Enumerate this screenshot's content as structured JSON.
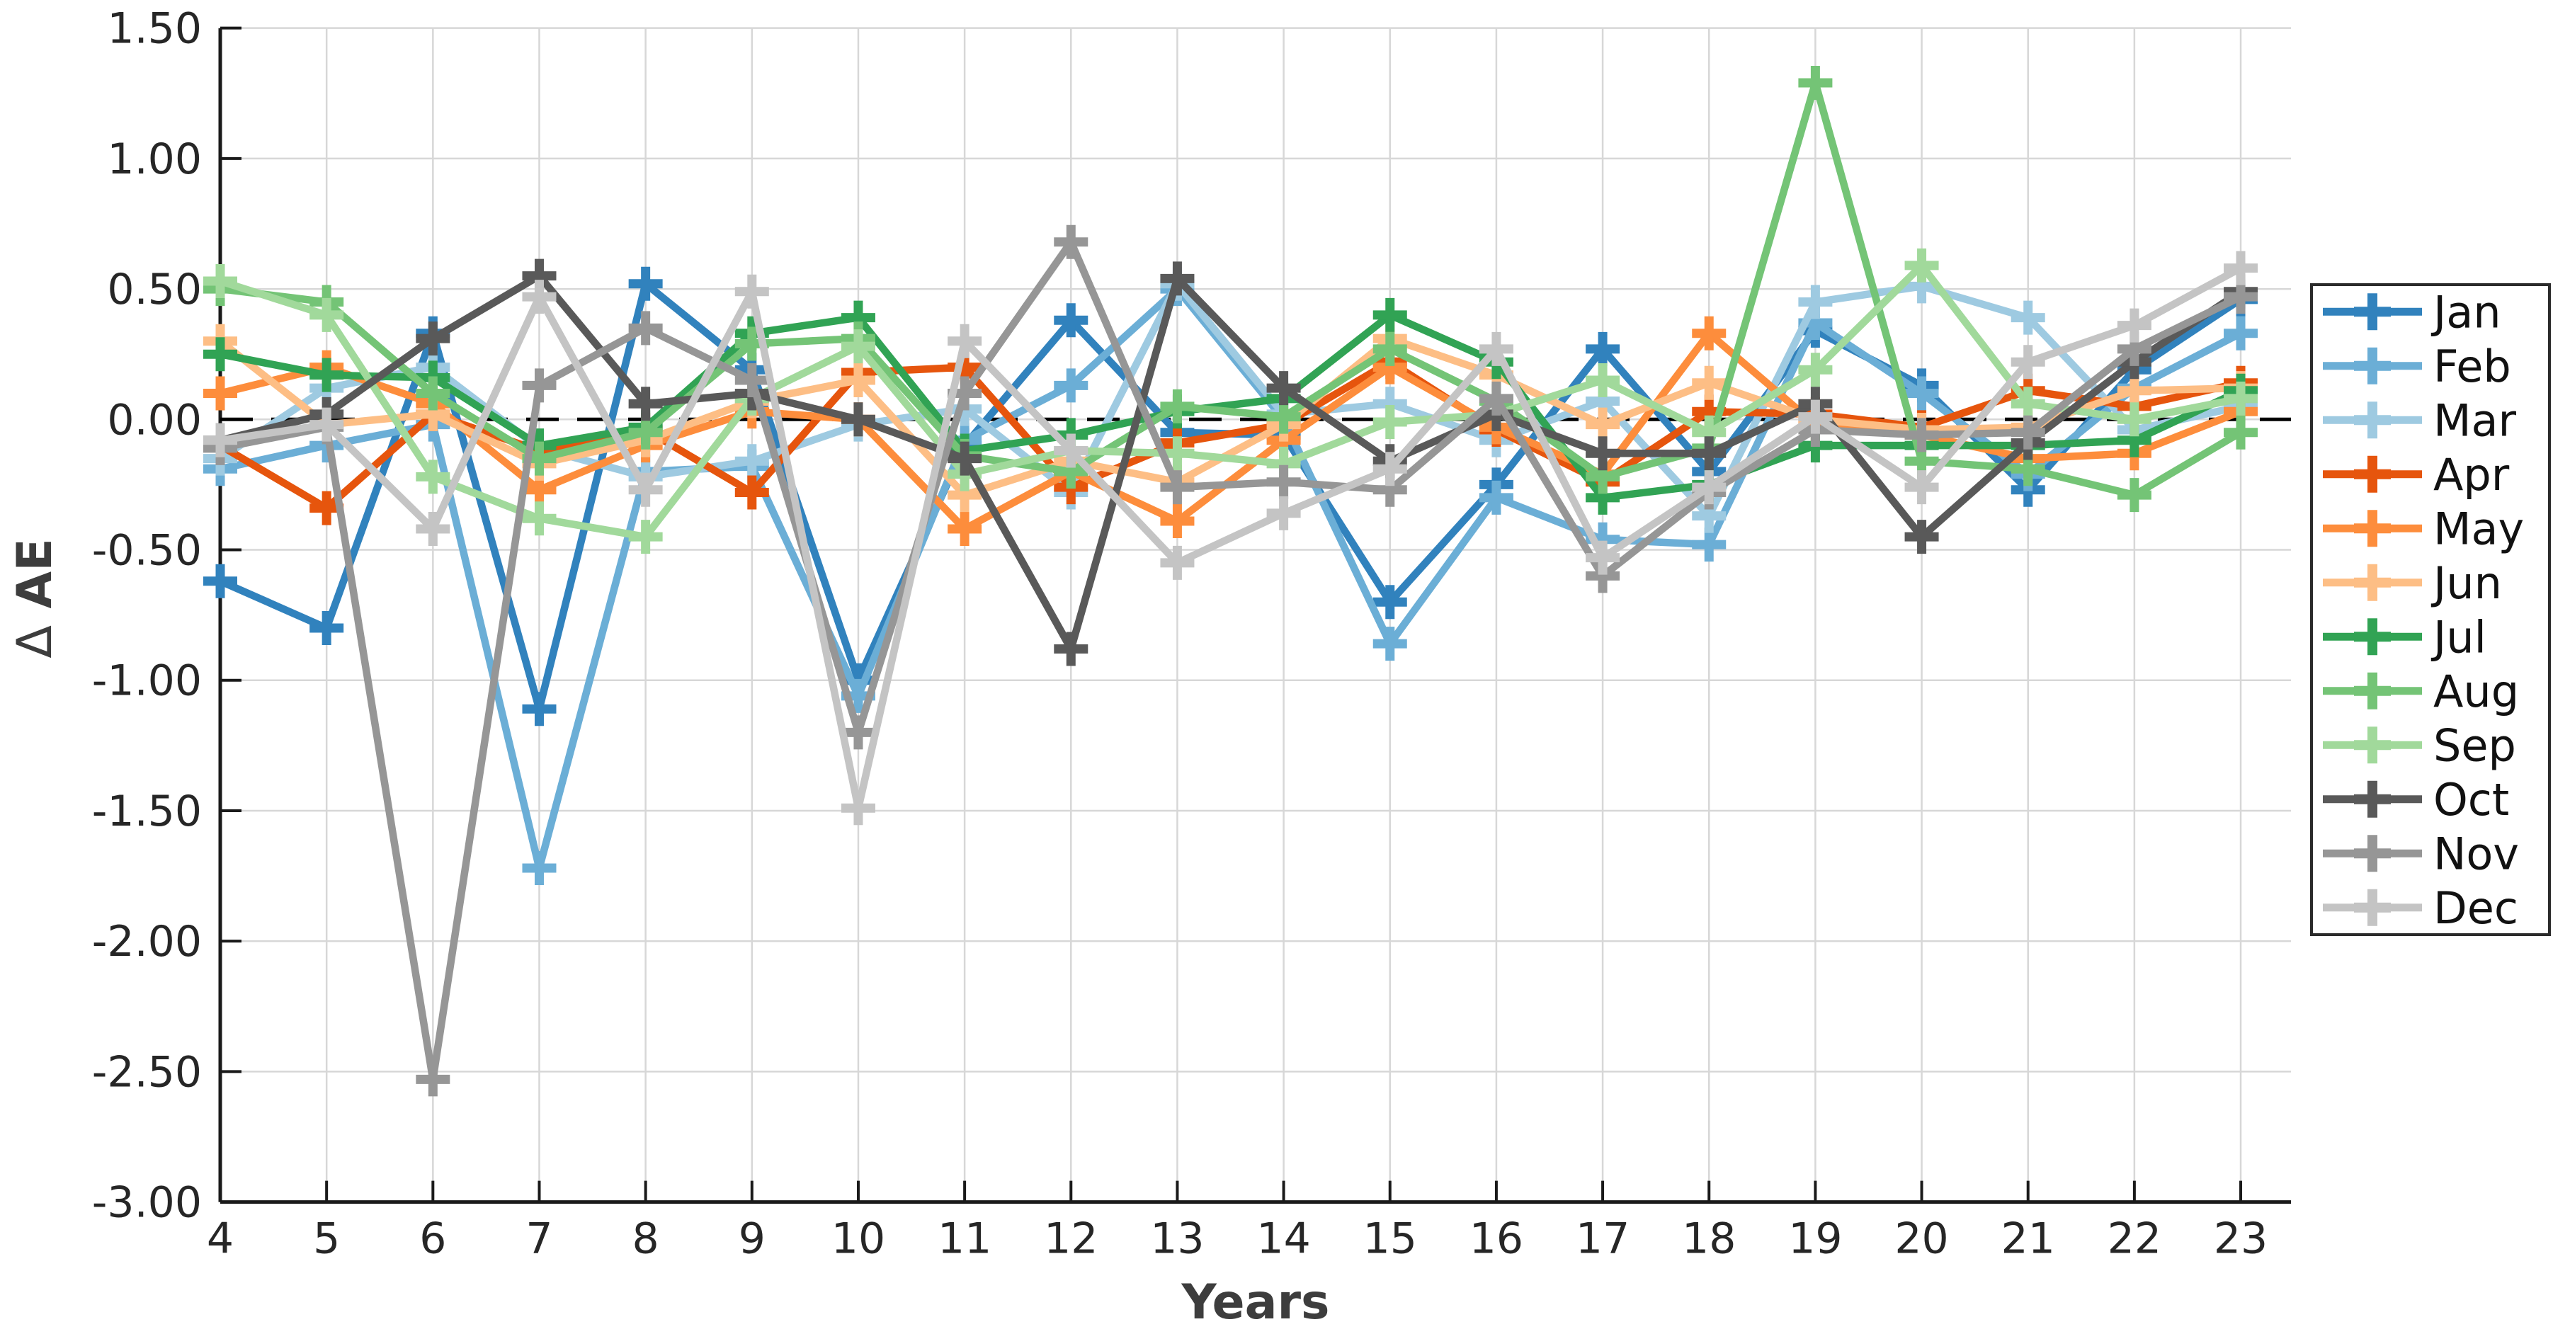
{
  "chart_data": {
    "type": "line",
    "title": "",
    "xlabel": "Years",
    "ylabel_symbol": "Δ",
    "ylabel_text": "AE",
    "x": [
      4,
      5,
      6,
      7,
      8,
      9,
      10,
      11,
      12,
      13,
      14,
      15,
      16,
      17,
      18,
      19,
      20,
      21,
      22,
      23
    ],
    "xtick_labels": [
      "4",
      "5",
      "6",
      "7",
      "8",
      "9",
      "10",
      "11",
      "12",
      "13",
      "14",
      "15",
      "16",
      "17",
      "18",
      "19",
      "20",
      "21",
      "22",
      "23"
    ],
    "ylim": [
      -3.0,
      1.5
    ],
    "yticks": [
      1.5,
      1.0,
      0.5,
      0.0,
      -0.5,
      -1.0,
      -1.5,
      -2.0,
      -2.5,
      -3.0
    ],
    "ytick_labels": [
      "1.50",
      "1.00",
      "0.50",
      "0.00",
      "-0.50",
      "-1.00",
      "-1.50",
      "-2.00",
      "-2.50",
      "-3.00"
    ],
    "grid": true,
    "zero_line": true,
    "zero_line_color": "#000000",
    "grid_color": "#d7d7d7",
    "axis_color": "#1a1a1a",
    "legend_position": "right-outside",
    "marker": "plus",
    "series": [
      {
        "name": "Jan",
        "color": "#3182bd",
        "values": [
          -0.62,
          -0.8,
          0.33,
          -1.11,
          0.52,
          0.19,
          -1.0,
          -0.1,
          0.38,
          -0.05,
          -0.06,
          -0.7,
          -0.25,
          0.27,
          -0.2,
          0.34,
          0.13,
          -0.27,
          0.19,
          0.46
        ]
      },
      {
        "name": "Feb",
        "color": "#6baed6",
        "values": [
          -0.19,
          -0.1,
          -0.02,
          -1.72,
          -0.2,
          -0.18,
          -1.06,
          -0.08,
          0.13,
          0.5,
          0.0,
          -0.86,
          -0.3,
          -0.46,
          -0.48,
          0.37,
          0.1,
          -0.21,
          0.12,
          0.33
        ]
      },
      {
        "name": "Mar",
        "color": "#9ecae1",
        "values": [
          -0.15,
          0.12,
          0.2,
          -0.11,
          -0.22,
          -0.16,
          -0.02,
          0.04,
          -0.28,
          0.52,
          0.02,
          0.06,
          -0.08,
          0.07,
          -0.37,
          0.45,
          0.51,
          0.39,
          -0.04,
          0.05
        ]
      },
      {
        "name": "Apr",
        "color": "#e6550d",
        "values": [
          -0.1,
          -0.34,
          0.02,
          -0.12,
          -0.04,
          -0.28,
          0.18,
          0.2,
          -0.26,
          -0.09,
          -0.02,
          0.22,
          -0.04,
          -0.24,
          0.03,
          0.02,
          -0.03,
          0.11,
          0.05,
          0.14
        ]
      },
      {
        "name": "May",
        "color": "#fd8d3c",
        "values": [
          0.1,
          0.2,
          0.06,
          -0.27,
          -0.1,
          0.03,
          0.0,
          -0.42,
          -0.2,
          -0.39,
          -0.08,
          0.2,
          -0.03,
          -0.21,
          0.33,
          -0.02,
          -0.06,
          -0.15,
          -0.13,
          0.03
        ]
      },
      {
        "name": "Jun",
        "color": "#fdbe85",
        "values": [
          0.3,
          -0.02,
          0.02,
          -0.17,
          -0.08,
          0.07,
          0.15,
          -0.29,
          -0.16,
          -0.24,
          -0.02,
          0.31,
          0.17,
          -0.02,
          0.14,
          0.0,
          -0.04,
          -0.03,
          0.11,
          0.12
        ]
      },
      {
        "name": "Jul",
        "color": "#31a354",
        "values": [
          0.25,
          0.17,
          0.16,
          -0.1,
          -0.03,
          0.33,
          0.39,
          -0.12,
          -0.06,
          0.03,
          0.08,
          0.4,
          0.22,
          -0.3,
          -0.25,
          -0.1,
          -0.1,
          -0.1,
          -0.08,
          0.11
        ]
      },
      {
        "name": "Aug",
        "color": "#74c476",
        "values": [
          0.5,
          0.45,
          0.1,
          -0.15,
          -0.05,
          0.29,
          0.31,
          -0.14,
          -0.2,
          0.05,
          0.01,
          0.27,
          0.07,
          -0.22,
          -0.11,
          1.29,
          -0.16,
          -0.19,
          -0.29,
          -0.05
        ]
      },
      {
        "name": "Sep",
        "color": "#a1d99b",
        "values": [
          0.53,
          0.4,
          -0.22,
          -0.38,
          -0.45,
          0.08,
          0.28,
          -0.21,
          -0.12,
          -0.13,
          -0.17,
          -0.01,
          0.02,
          0.15,
          -0.05,
          0.19,
          0.59,
          0.06,
          0.0,
          0.08
        ]
      },
      {
        "name": "Oct",
        "color": "#595959",
        "values": [
          -0.08,
          0.02,
          0.31,
          0.55,
          0.06,
          0.1,
          0.0,
          -0.15,
          -0.88,
          0.54,
          0.12,
          -0.16,
          0.02,
          -0.13,
          -0.13,
          0.06,
          -0.45,
          -0.09,
          0.22,
          0.49
        ]
      },
      {
        "name": "Nov",
        "color": "#969696",
        "values": [
          -0.11,
          -0.03,
          -2.53,
          0.13,
          0.35,
          0.15,
          -1.2,
          0.1,
          0.68,
          -0.26,
          -0.24,
          -0.27,
          0.08,
          -0.6,
          -0.28,
          -0.04,
          -0.06,
          -0.05,
          0.27,
          0.47
        ]
      },
      {
        "name": "Dec",
        "color": "#c4c4c4",
        "values": [
          -0.08,
          -0.02,
          -0.42,
          0.47,
          -0.27,
          0.49,
          -1.49,
          0.3,
          -0.12,
          -0.55,
          -0.36,
          -0.19,
          0.27,
          -0.53,
          -0.26,
          0.01,
          -0.26,
          0.22,
          0.36,
          0.58
        ]
      }
    ]
  }
}
